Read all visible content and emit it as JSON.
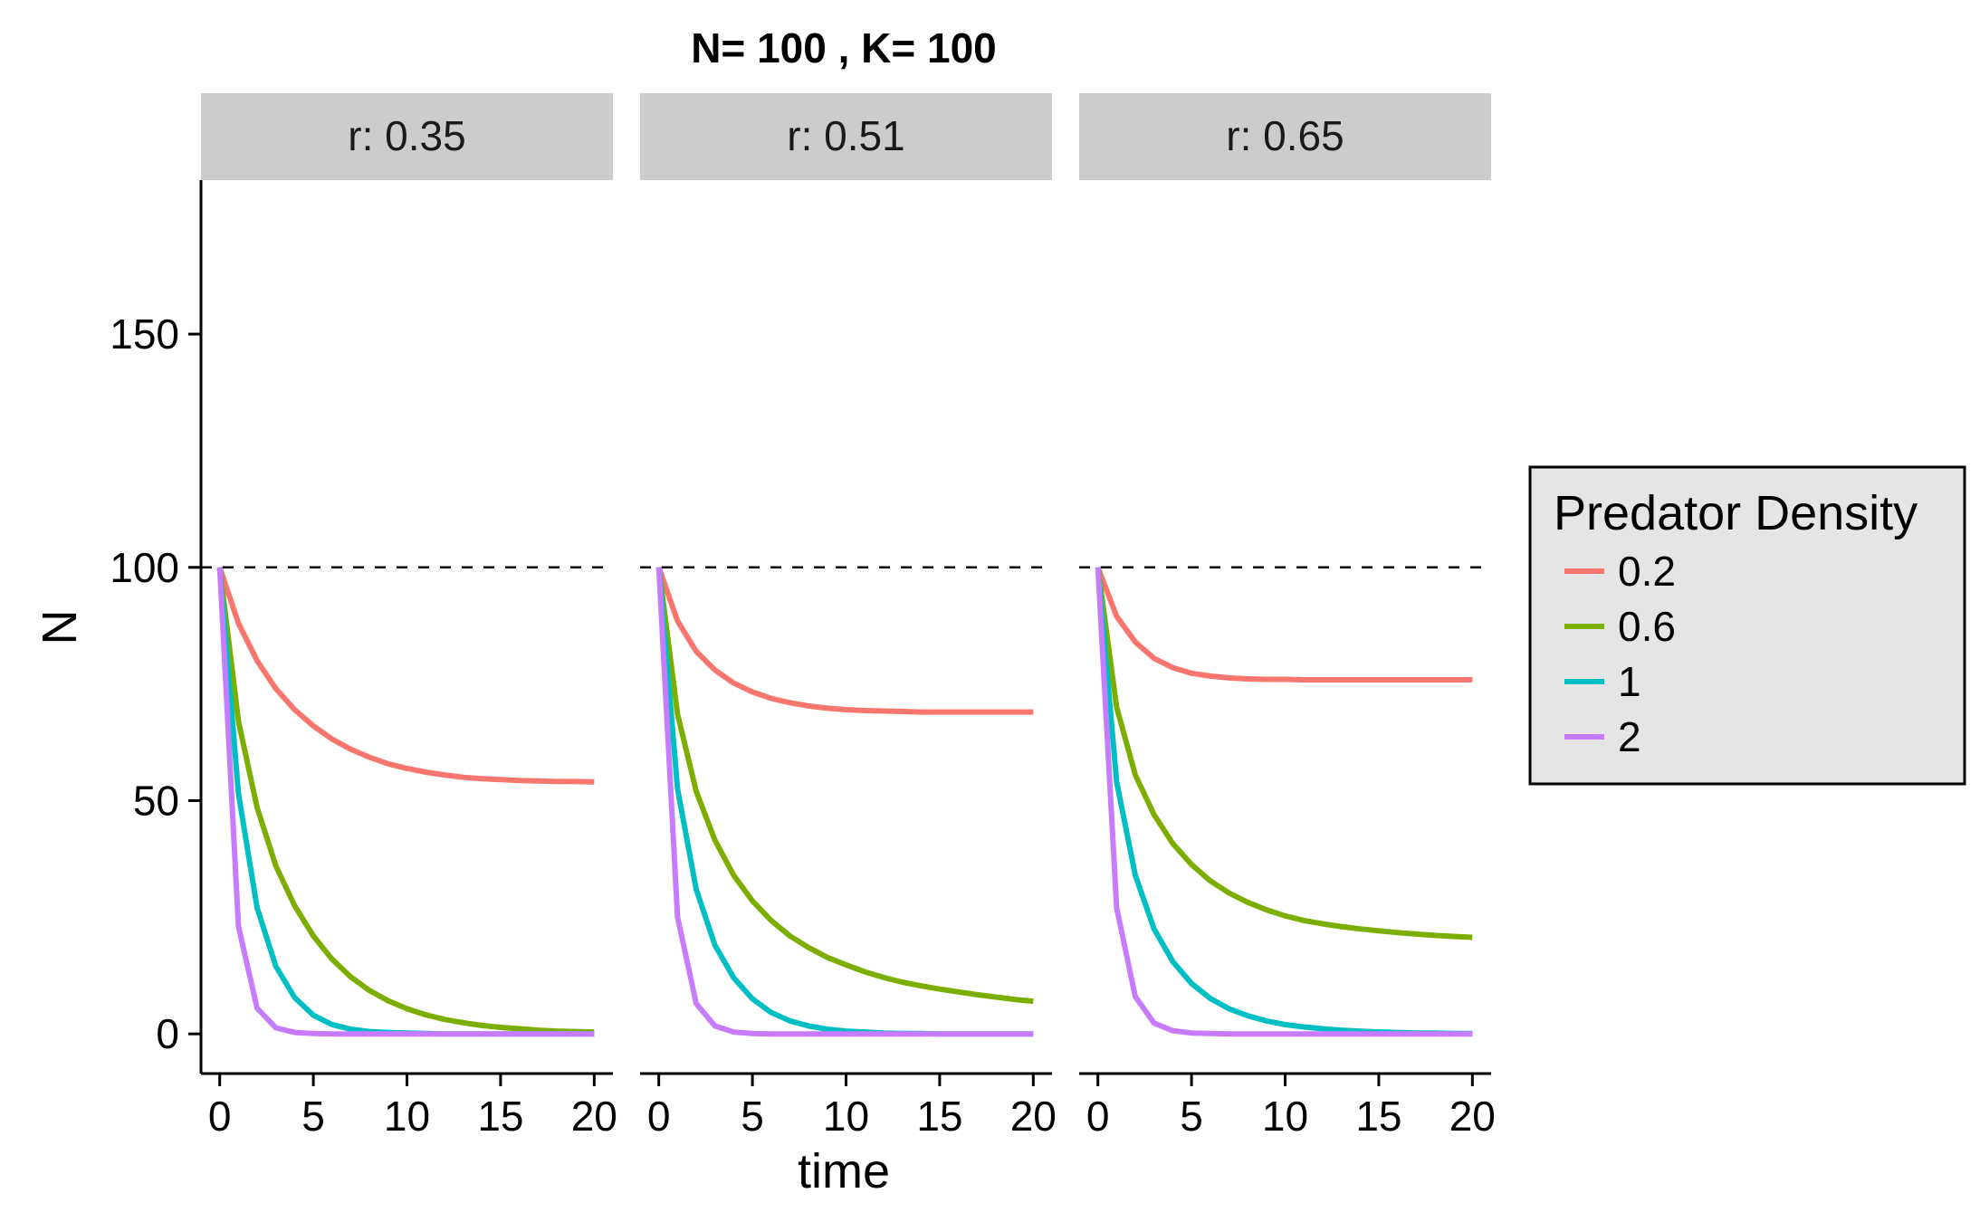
{
  "chart_data": {
    "type": "line",
    "title": "N= 100 , K= 100",
    "xlabel": "time",
    "ylabel": "N",
    "xlim": [
      -1,
      21
    ],
    "ylim": [
      -8.5,
      183
    ],
    "x_ticks": [
      0,
      5,
      10,
      15,
      20
    ],
    "y_ticks": [
      0,
      50,
      100,
      150
    ],
    "reference_line": {
      "y": 100,
      "style": "dashed"
    },
    "grid": false,
    "legend": {
      "title": "Predator Density",
      "placement": "right",
      "entries": [
        {
          "label": "0.2",
          "color": "#F8766D"
        },
        {
          "label": "0.6",
          "color": "#7CAE00"
        },
        {
          "label": "1",
          "color": "#00BFC4"
        },
        {
          "label": "2",
          "color": "#C77CFF"
        }
      ]
    },
    "x": [
      0,
      1,
      2,
      3,
      4,
      5,
      6,
      7,
      8,
      9,
      10,
      11,
      12,
      13,
      14,
      15,
      16,
      17,
      18,
      19,
      20
    ],
    "panels": [
      {
        "strip": "r: 0.35",
        "series": [
          {
            "name": "0.2",
            "values": [
              100,
              88,
              80,
              74,
              69.5,
              66,
              63.2,
              61,
              59.3,
              57.9,
              56.9,
              56.1,
              55.5,
              55,
              54.7,
              54.5,
              54.3,
              54.2,
              54.1,
              54.1,
              54
            ]
          },
          {
            "name": "0.6",
            "values": [
              100,
              67,
              48.5,
              36,
              27.5,
              21,
              16,
              12.2,
              9.3,
              7.1,
              5.4,
              4.1,
              3.1,
              2.4,
              1.8,
              1.4,
              1.1,
              0.8,
              0.6,
              0.5,
              0.4
            ]
          },
          {
            "name": "1",
            "values": [
              100,
              51.5,
              27,
              14.5,
              7.8,
              4,
              2,
              1,
              0.5,
              0.3,
              0.2,
              0.1,
              0,
              0,
              0,
              0,
              0,
              0,
              0,
              0,
              0
            ]
          },
          {
            "name": "2",
            "values": [
              100,
              23,
              5.5,
              1.3,
              0.3,
              0.1,
              0,
              0,
              0,
              0,
              0,
              0,
              0,
              0,
              0,
              0,
              0,
              0,
              0,
              0,
              0
            ]
          }
        ]
      },
      {
        "strip": "r: 0.51",
        "series": [
          {
            "name": "0.2",
            "values": [
              100,
              88.5,
              82,
              78,
              75.2,
              73.3,
              71.9,
              71,
              70.3,
              69.8,
              69.5,
              69.3,
              69.2,
              69.1,
              69,
              69,
              69,
              69,
              69,
              69,
              69
            ]
          },
          {
            "name": "0.6",
            "values": [
              100,
              68.5,
              52,
              41.5,
              34,
              28.5,
              24.3,
              21,
              18.5,
              16.4,
              14.8,
              13.3,
              12.1,
              11.1,
              10.3,
              9.6,
              9,
              8.4,
              7.9,
              7.4,
              7
            ]
          },
          {
            "name": "1",
            "values": [
              100,
              52.5,
              31,
              19,
              12,
              7.5,
              4.6,
              2.8,
              1.7,
              1,
              0.6,
              0.4,
              0.2,
              0.1,
              0.1,
              0,
              0,
              0,
              0,
              0,
              0
            ]
          },
          {
            "name": "2",
            "values": [
              100,
              25,
              6.5,
              1.7,
              0.4,
              0.1,
              0,
              0,
              0,
              0,
              0,
              0,
              0,
              0,
              0,
              0,
              0,
              0,
              0,
              0,
              0
            ]
          }
        ]
      },
      {
        "strip": "r: 0.65",
        "series": [
          {
            "name": "0.2",
            "values": [
              100,
              89.5,
              84,
              80.5,
              78.5,
              77.3,
              76.7,
              76.3,
              76.1,
              76,
              76,
              75.9,
              75.9,
              75.9,
              75.9,
              75.9,
              75.9,
              75.9,
              75.9,
              75.9,
              75.9
            ]
          },
          {
            "name": "0.6",
            "values": [
              100,
              70,
              55.5,
              47,
              40.8,
              36.3,
              32.8,
              30.2,
              28.2,
              26.6,
              25.3,
              24.3,
              23.6,
              23,
              22.5,
              22.1,
              21.7,
              21.4,
              21.1,
              20.9,
              20.7
            ]
          },
          {
            "name": "1",
            "values": [
              100,
              54,
              34,
              22.5,
              15.5,
              10.8,
              7.6,
              5.4,
              3.9,
              2.8,
              2,
              1.5,
              1.1,
              0.8,
              0.6,
              0.4,
              0.3,
              0.2,
              0.2,
              0.1,
              0.1
            ]
          },
          {
            "name": "2",
            "values": [
              100,
              27,
              8,
              2.3,
              0.7,
              0.2,
              0.1,
              0,
              0,
              0,
              0,
              0,
              0,
              0,
              0,
              0,
              0,
              0,
              0,
              0,
              0
            ]
          }
        ]
      }
    ]
  }
}
